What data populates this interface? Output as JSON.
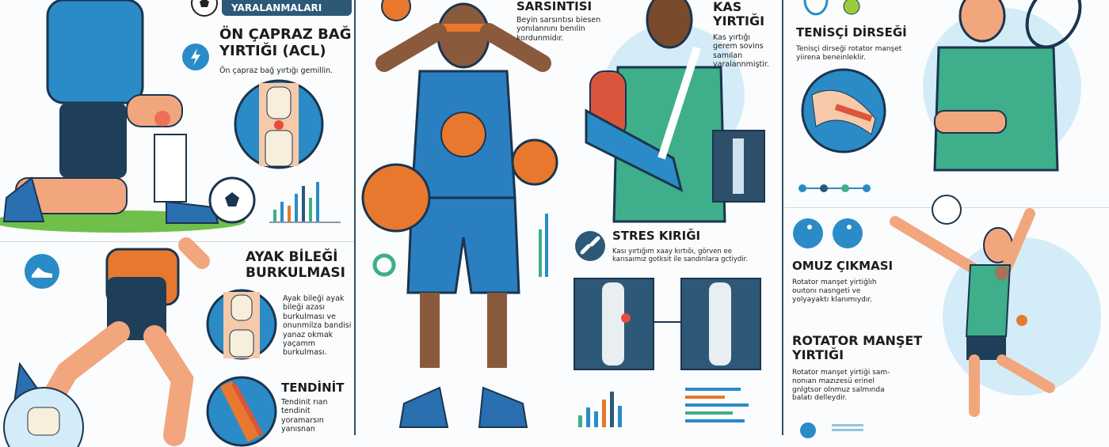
{
  "banner": {
    "label": "YARALANMALARI",
    "icon": "soccer-ball-icon"
  },
  "colors": {
    "primary": "#2d5878",
    "accent_blue": "#2a8bc6",
    "accent_orange": "#e8782e",
    "accent_green": "#3fae8a",
    "light_blue": "#d4ecf7"
  },
  "panels": {
    "acl": {
      "title_line1": "ÖN ÇAPRAZ BAĞ",
      "title_line2": "YIRTIĞI (ACL)",
      "desc": "Ön çapraz bağ yırtığı gemillin.",
      "icon": "lightning-icon"
    },
    "concussion": {
      "title": "SARSINTISI",
      "desc": [
        "Beyin sarsıntısı biesen",
        "yonılannını benılin",
        "kordunmidır."
      ]
    },
    "muscle_tear": {
      "title_line1": "KAS",
      "title_line2": "YIRTIĞI",
      "desc": [
        "Kas yırtığı",
        "gerem sovins",
        "samılan",
        "yaralannmiştir."
      ]
    },
    "tennis_elbow": {
      "title": "TENİSÇİ DİRSEĞİ",
      "desc": [
        "Tenisçi dirseği rotator manşet",
        "yiirena beneinleklir."
      ],
      "icon": "tennis-racket-icon"
    },
    "ankle_sprain": {
      "title_line1": "AYAK BİLEĞİ",
      "title_line2": "BURKULMASI",
      "desc": [
        "Ayak bileği ayak",
        "bileği azası",
        "burkulması ve",
        "onunmilza bandisi",
        "yanaz okmak",
        "yaçamm",
        "burkulması."
      ],
      "icon": "shoe-icon"
    },
    "tendinitis": {
      "title": "TENDİNİT",
      "desc": [
        "Tendinit rıan",
        "tendinit",
        "yoramarsın",
        "yanısnan"
      ]
    },
    "stress_fracture": {
      "title": "STRES KIRIĞI",
      "desc": [
        "Kası yırtığım xaay kırtıõı, görven ee",
        "karısaımız gotksit ile sandınlara gctiydir."
      ],
      "icon": "broken-bone-icon"
    },
    "shoulder_dislocation": {
      "title": "OMUZ ÇIKMASI",
      "desc": [
        "Rotator manşet yirtiğlıh",
        "ouıtonı nasngeti ve",
        "yolyayaktı klanımıydır."
      ]
    },
    "rotator_cuff": {
      "title_line1": "ROTATOR MANŞET",
      "title_line2": "YIRTIĞI",
      "desc": [
        "Rotator manşet yirtiği sam-",
        "nonıan mazızesü erinel",
        "gnlgtsor olnmuz salmında",
        "balatı delleydir."
      ]
    }
  }
}
